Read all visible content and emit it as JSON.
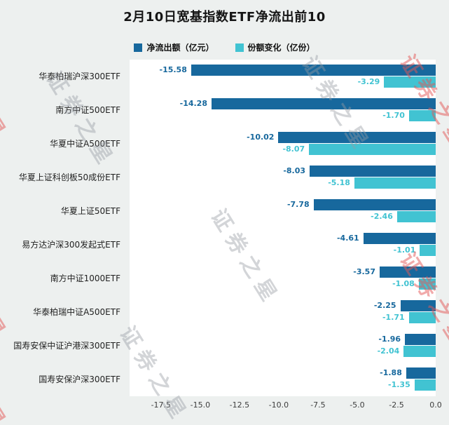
{
  "title": "2月10日宽基指数ETF净流出前10",
  "watermark": "证券之星",
  "legend": [
    {
      "label": "净流出额（亿元）",
      "color": "#17689d"
    },
    {
      "label": "份额变化（亿份）",
      "color": "#41c3d2"
    }
  ],
  "chart_data": {
    "type": "bar",
    "orientation": "horizontal",
    "title": "2月10日宽基指数ETF净流出前10",
    "xlabel": "",
    "ylabel": "",
    "xlim": [
      -19.5,
      0
    ],
    "xticks": [
      -17.5,
      -15.0,
      -12.5,
      -10.0,
      -7.5,
      -5.0,
      -2.5,
      0.0
    ],
    "grid": false,
    "legend_position": "top-center",
    "categories": [
      "华泰柏瑞沪深300ETF",
      "南方中证500ETF",
      "华夏中证A500ETF",
      "华夏上证科创板50成份ETF",
      "华夏上证50ETF",
      "易方达沪深300发起式ETF",
      "南方中证1000ETF",
      "华泰柏瑞中证A500ETF",
      "国寿安保中证沪港深300ETF",
      "国寿安保沪深300ETF"
    ],
    "series": [
      {
        "name": "净流出额（亿元）",
        "color": "#17689d",
        "values": [
          -15.58,
          -14.28,
          -10.02,
          -8.03,
          -7.78,
          -4.61,
          -3.57,
          -2.25,
          -1.96,
          -1.88
        ]
      },
      {
        "name": "份额变化（亿份）",
        "color": "#41c3d2",
        "values": [
          -3.29,
          -1.7,
          -8.07,
          -5.18,
          -2.46,
          -1.01,
          -1.08,
          -1.71,
          -2.04,
          -1.35
        ]
      }
    ]
  }
}
